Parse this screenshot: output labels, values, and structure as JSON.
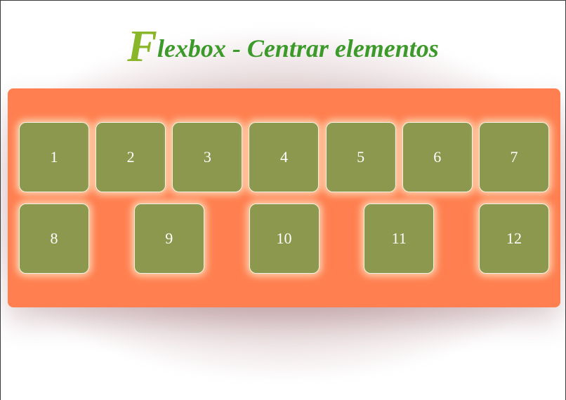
{
  "title": {
    "first_letter": "F",
    "rest": "lexbox - Centrar elementos"
  },
  "boxes": [
    "1",
    "2",
    "3",
    "4",
    "5",
    "6",
    "7",
    "8",
    "9",
    "10",
    "11",
    "12"
  ],
  "colors": {
    "container": "#ff7f50",
    "box": "#8b984e",
    "title": "#3c9a2a",
    "title_initial": "#8ab72a"
  }
}
